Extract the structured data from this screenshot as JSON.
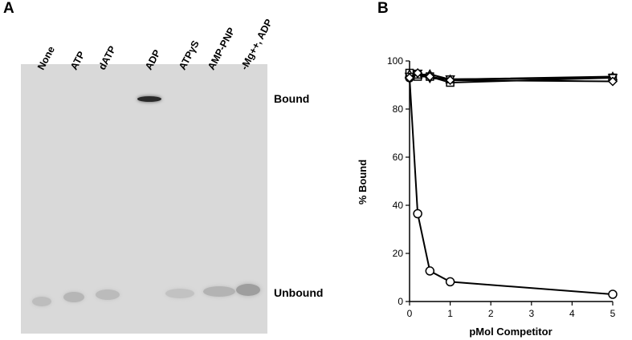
{
  "panel_a": {
    "letter": "A",
    "lanes": [
      "None",
      "ATP",
      "dATP",
      "ADP",
      "ATPγS",
      "AMP-PNP",
      "-Mg++, ADP"
    ],
    "bound_label": "Bound",
    "unbound_label": "Unbound"
  },
  "panel_b": {
    "letter": "B"
  },
  "chart_data": {
    "type": "line",
    "xlabel": "pMol Competitor",
    "ylabel": "% Bound",
    "xlim": [
      0,
      5
    ],
    "ylim": [
      0,
      100
    ],
    "x_ticks": [
      0,
      1,
      2,
      3,
      4,
      5
    ],
    "y_ticks": [
      0,
      20,
      40,
      60,
      80,
      100
    ],
    "series": [
      {
        "marker": "circle",
        "x": [
          0,
          0.2,
          0.5,
          1,
          5
        ],
        "y": [
          93,
          36.5,
          12.7,
          8.2,
          3
        ]
      },
      {
        "marker": "square",
        "x": [
          0,
          0.2,
          0.5,
          1,
          5
        ],
        "y": [
          95,
          93.5,
          93.5,
          91,
          93
        ]
      },
      {
        "marker": "triangle-up",
        "x": [
          0,
          0.2,
          0.5,
          1,
          5
        ],
        "y": [
          94.5,
          94.2,
          94.5,
          92.3,
          93.5
        ]
      },
      {
        "marker": "triangle-down",
        "x": [
          0,
          0.2,
          0.5,
          1,
          5
        ],
        "y": [
          93.5,
          94.8,
          92.8,
          92.4,
          93
        ]
      },
      {
        "marker": "diamond",
        "x": [
          0,
          0.2,
          0.5,
          1,
          5
        ],
        "y": [
          93,
          95,
          93.5,
          92,
          91.5
        ]
      }
    ]
  }
}
